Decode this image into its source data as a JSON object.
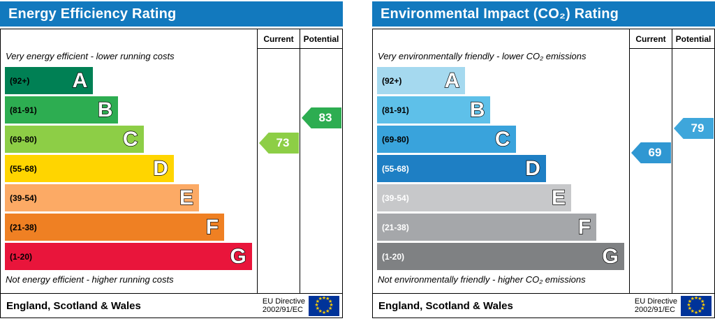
{
  "chart_data": [
    {
      "type": "bar",
      "title": "Energy Efficiency Rating",
      "header_color": "#1279be",
      "columns": [
        "Current",
        "Potential"
      ],
      "caption_top": "Very energy efficient - lower running costs",
      "caption_bottom": "Not energy efficient - higher running costs",
      "bands": [
        {
          "letter": "A",
          "range_label": "(92+)",
          "min": 92,
          "max": 100,
          "color": "#008054",
          "width_pct": 35,
          "text_color": "#000000"
        },
        {
          "letter": "B",
          "range_label": "(81-91)",
          "min": 81,
          "max": 91,
          "color": "#2dad51",
          "width_pct": 45,
          "text_color": "#000000"
        },
        {
          "letter": "C",
          "range_label": "(69-80)",
          "min": 69,
          "max": 80,
          "color": "#8dce46",
          "width_pct": 55,
          "text_color": "#000000"
        },
        {
          "letter": "D",
          "range_label": "(55-68)",
          "min": 55,
          "max": 68,
          "color": "#ffd500",
          "width_pct": 67,
          "text_color": "#000000"
        },
        {
          "letter": "E",
          "range_label": "(39-54)",
          "min": 39,
          "max": 54,
          "color": "#fcaa65",
          "width_pct": 77,
          "text_color": "#000000"
        },
        {
          "letter": "F",
          "range_label": "(21-38)",
          "min": 21,
          "max": 38,
          "color": "#ef8023",
          "width_pct": 87,
          "text_color": "#000000"
        },
        {
          "letter": "G",
          "range_label": "(1-20)",
          "min": 1,
          "max": 20,
          "color": "#e9153b",
          "width_pct": 98,
          "text_color": "#000000"
        }
      ],
      "current": {
        "value": 73,
        "color": "#8dce46"
      },
      "potential": {
        "value": 83,
        "color": "#2dad51"
      },
      "footer": {
        "region": "England, Scotland & Wales",
        "directive_line1": "EU Directive",
        "directive_line2": "2002/91/EC",
        "flag_color": "#003399",
        "star_color": "#ffcc00"
      }
    },
    {
      "type": "bar",
      "title": "Environmental Impact (CO₂) Rating",
      "header_color": "#1279be",
      "columns": [
        "Current",
        "Potential"
      ],
      "caption_top": "Very environmentally friendly - lower CO₂ emissions",
      "caption_bottom": "Not environmentally friendly - higher CO₂ emissions",
      "bands": [
        {
          "letter": "A",
          "range_label": "(92+)",
          "min": 92,
          "max": 100,
          "color": "#a5d9ef",
          "width_pct": 35,
          "text_color": "#000000"
        },
        {
          "letter": "B",
          "range_label": "(81-91)",
          "min": 81,
          "max": 91,
          "color": "#5ec0e9",
          "width_pct": 45,
          "text_color": "#000000"
        },
        {
          "letter": "C",
          "range_label": "(69-80)",
          "min": 69,
          "max": 80,
          "color": "#39a3dc",
          "width_pct": 55,
          "text_color": "#000000"
        },
        {
          "letter": "D",
          "range_label": "(55-68)",
          "min": 55,
          "max": 68,
          "color": "#1e7fc4",
          "width_pct": 67,
          "text_color": "#ffffff"
        },
        {
          "letter": "E",
          "range_label": "(39-54)",
          "min": 39,
          "max": 54,
          "color": "#c7c8ca",
          "width_pct": 77,
          "text_color": "#ffffff"
        },
        {
          "letter": "F",
          "range_label": "(21-38)",
          "min": 21,
          "max": 38,
          "color": "#a5a7aa",
          "width_pct": 87,
          "text_color": "#ffffff"
        },
        {
          "letter": "G",
          "range_label": "(1-20)",
          "min": 1,
          "max": 20,
          "color": "#7f8183",
          "width_pct": 98,
          "text_color": "#ffffff"
        }
      ],
      "current": {
        "value": 69,
        "color": "#2f97d2"
      },
      "potential": {
        "value": 79,
        "color": "#3ea6db"
      },
      "footer": {
        "region": "England, Scotland & Wales",
        "directive_line1": "EU Directive",
        "directive_line2": "2002/91/EC",
        "flag_color": "#003399",
        "star_color": "#ffcc00"
      }
    }
  ]
}
